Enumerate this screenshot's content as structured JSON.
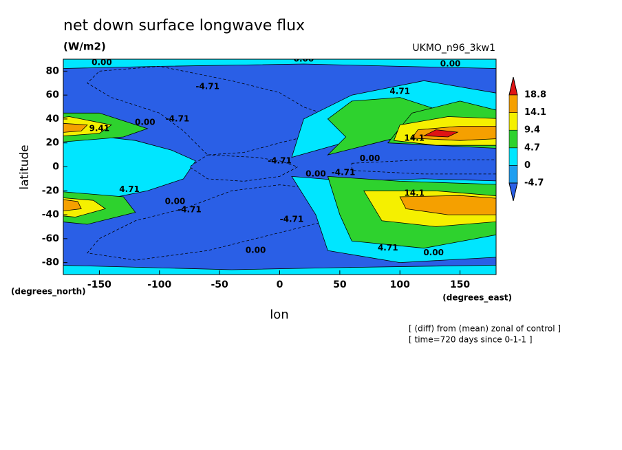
{
  "chart_data": {
    "type": "contour",
    "title": "net down surface longwave flux",
    "units": "(W/m2)",
    "model": "UKMO_n96_3kw1",
    "x_label": "lon",
    "y_label": "latitude",
    "x_units": "(degrees_east)",
    "y_units": "(degrees_north)",
    "notes": [
      "[ (diff) from (mean) zonal of control ]",
      "[ time=720 days since 0-1-1 ]"
    ],
    "xlim": [
      -180,
      180
    ],
    "xticks": [
      -150,
      -100,
      -50,
      0,
      50,
      100,
      150
    ],
    "ylim": [
      -90,
      90
    ],
    "yticks": [
      -80,
      -60,
      -40,
      -20,
      0,
      20,
      40,
      60,
      80
    ],
    "colorbar": {
      "levels": [
        -4.7,
        0,
        4.7,
        9.4,
        14.1,
        18.8
      ],
      "colors": [
        "#2a5fe6",
        "#1e9ef0",
        "#00e6ff",
        "#2ed22e",
        "#f5f000",
        "#f5a000",
        "#e01414"
      ]
    },
    "contour_labels": [
      "0.00",
      "0.00",
      "0.00",
      "-4.71",
      "-4.71",
      "0.00",
      "9.41",
      "4.71",
      "14.1",
      "0.00",
      "-4.71",
      "0.00",
      "-4.71",
      "4.71",
      "0.00",
      "-4.71",
      "-4.71",
      "0.00",
      "4.71",
      "0.00",
      "14.1"
    ]
  }
}
